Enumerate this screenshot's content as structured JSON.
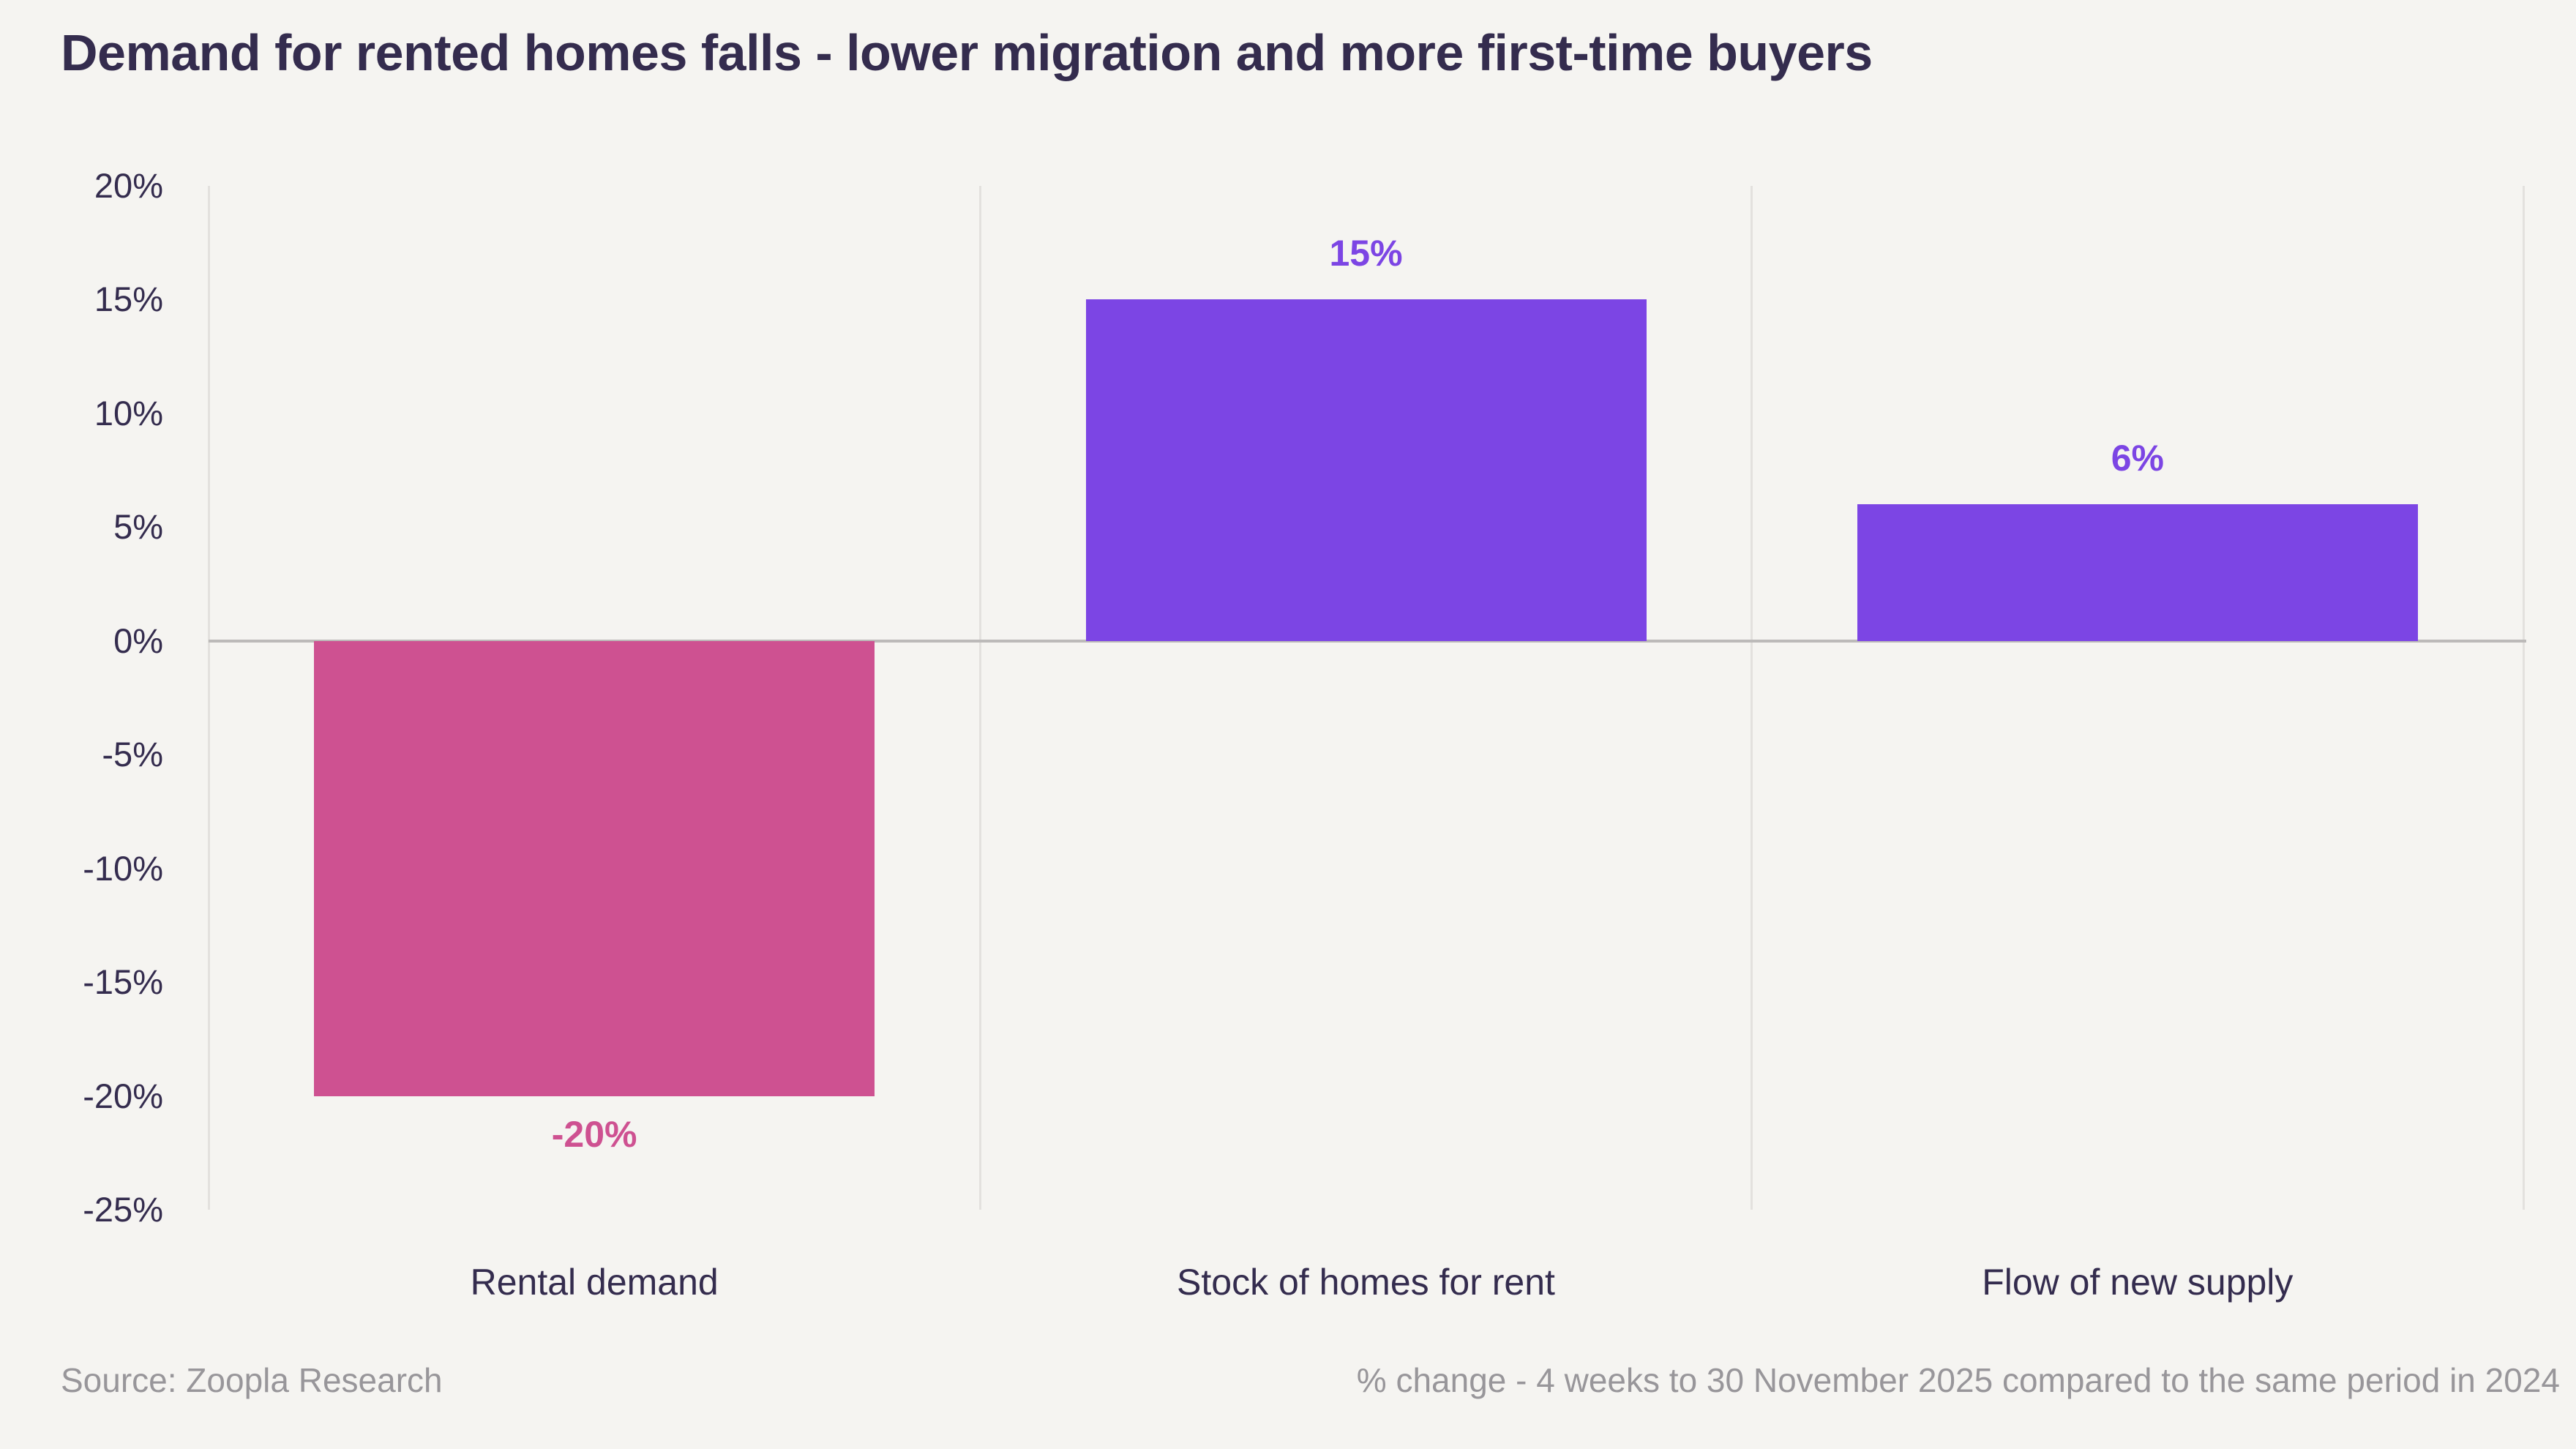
{
  "title": "Demand for rented homes falls - lower migration and more first-time buyers",
  "footer": {
    "source": "Source: Zoopla Research",
    "note": "% change - 4 weeks to 30 November 2025 compared to the same period in 2024"
  },
  "colors": {
    "background": "#f5f4f1",
    "title_text": "#342c4e",
    "axis_text": "#342c4e",
    "muted_text": "#98969a",
    "zero_line": "#bcbab9",
    "gridline": "#e3e1de",
    "negative_bar": "#ce5191",
    "positive_bar": "#7c45e4"
  },
  "chart_data": {
    "type": "bar",
    "title": "Demand for rented homes falls - lower migration and more first-time buyers",
    "categories": [
      "Rental demand",
      "Stock of homes for rent",
      "Flow of new supply"
    ],
    "values": [
      -20,
      15,
      6
    ],
    "data_labels": [
      "-20%",
      "15%",
      "6%"
    ],
    "bar_colors": [
      "#ce5191",
      "#7c45e4",
      "#7c45e4"
    ],
    "xlabel": "",
    "ylabel": "",
    "ylim": [
      -25,
      20
    ],
    "ytick_step": 5,
    "yticks": [
      {
        "value": 20,
        "label": "20%"
      },
      {
        "value": 15,
        "label": "15%"
      },
      {
        "value": 10,
        "label": "10%"
      },
      {
        "value": 5,
        "label": "5%"
      },
      {
        "value": 0,
        "label": "0%"
      },
      {
        "value": -5,
        "label": "-5%"
      },
      {
        "value": -10,
        "label": "-10%"
      },
      {
        "value": -15,
        "label": "-15%"
      },
      {
        "value": -20,
        "label": "-20%"
      },
      {
        "value": -25,
        "label": "-25%"
      }
    ],
    "grid": "vertical-category-separators-only",
    "legend": "none",
    "source": "Source: Zoopla Research",
    "note": "% change - 4 weeks to 30 November 2025 compared to the same period in 2024"
  }
}
